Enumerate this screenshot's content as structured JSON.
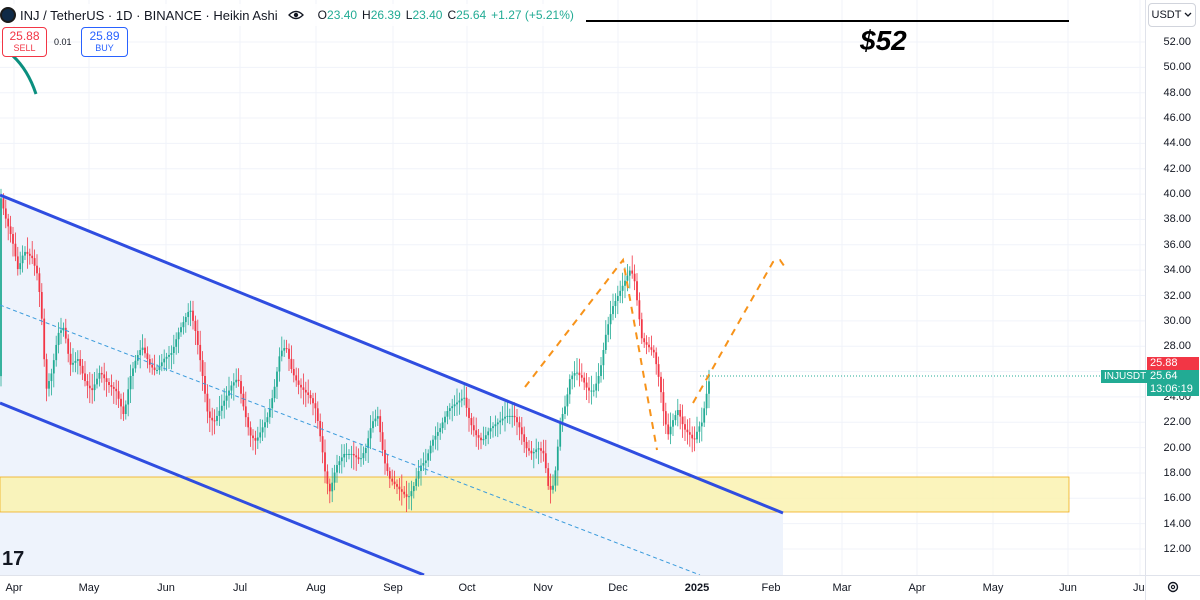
{
  "header": {
    "symbol_title": "INJ / TetherUS · 1D · BINANCE · Heikin Ashi",
    "ohlc": {
      "o_label": "O",
      "o_value": "23.40",
      "h_label": "H",
      "h_value": "26.39",
      "l_label": "L",
      "l_value": "23.40",
      "c_label": "C",
      "c_value": "25.64",
      "change": "+1.27 (+5.21%)"
    },
    "logo_icon": "inj-logo-icon",
    "eye_icon": "eye-icon"
  },
  "trade": {
    "sell_price": "25.88",
    "sell_label": "SELL",
    "spread": "0.01",
    "buy_price": "25.89",
    "buy_label": "BUY"
  },
  "currency_button": {
    "label": "USDT",
    "icon": "chevron-down-icon"
  },
  "annotation_target": "$52",
  "price_tags": {
    "symbol": "INJUSDT",
    "ask": "25.88",
    "last": "25.64",
    "countdown": "13:06:19"
  },
  "colors": {
    "up": "#22ab94",
    "down": "#f23645",
    "channel": "#2f4de0",
    "channel_fill": "#eef3fc",
    "zone_fill": "#fbf3b5",
    "zone_border": "#f0a500",
    "projection": "#f7931a",
    "midline": "#3a9bdc"
  },
  "tv_logo": "17",
  "settings_icon": "gear-icon",
  "chart_data": {
    "type": "candlestick",
    "chart_style": "Heikin Ashi",
    "y_ticks": [
      "52.00",
      "50.00",
      "48.00",
      "46.00",
      "44.00",
      "42.00",
      "40.00",
      "38.00",
      "36.00",
      "34.00",
      "32.00",
      "30.00",
      "28.00",
      "26.00",
      "24.00",
      "22.00",
      "20.00",
      "18.00",
      "16.00",
      "14.00",
      "12.00"
    ],
    "x_ticks": [
      "Apr",
      "May",
      "Jun",
      "Jul",
      "Aug",
      "Sep",
      "Oct",
      "Nov",
      "Dec",
      "2025",
      "Feb",
      "Mar",
      "Apr",
      "May",
      "Jun",
      "Jul"
    ],
    "ylim": [
      10.3,
      54.5
    ],
    "price_path": [
      [
        0,
        40.0
      ],
      [
        6,
        38.0
      ],
      [
        12,
        36.5
      ],
      [
        18,
        34.0
      ],
      [
        24,
        35.5
      ],
      [
        32,
        35.0
      ],
      [
        38,
        33.5
      ],
      [
        42,
        30.0
      ],
      [
        46,
        24.5
      ],
      [
        52,
        26.0
      ],
      [
        58,
        29.0
      ],
      [
        64,
        29.5
      ],
      [
        70,
        26.5
      ],
      [
        78,
        27.0
      ],
      [
        86,
        25.0
      ],
      [
        92,
        24.5
      ],
      [
        100,
        26.0
      ],
      [
        108,
        25.0
      ],
      [
        116,
        24.5
      ],
      [
        124,
        22.5
      ],
      [
        130,
        25.5
      ],
      [
        136,
        27.0
      ],
      [
        142,
        28.0
      ],
      [
        150,
        26.5
      ],
      [
        156,
        26.0
      ],
      [
        164,
        27.0
      ],
      [
        172,
        27.5
      ],
      [
        178,
        29.0
      ],
      [
        184,
        30.0
      ],
      [
        190,
        31.0
      ],
      [
        196,
        29.0
      ],
      [
        202,
        26.0
      ],
      [
        208,
        22.5
      ],
      [
        214,
        22.0
      ],
      [
        220,
        23.0
      ],
      [
        226,
        24.0
      ],
      [
        232,
        25.0
      ],
      [
        238,
        25.5
      ],
      [
        244,
        23.0
      ],
      [
        250,
        21.0
      ],
      [
        256,
        20.5
      ],
      [
        262,
        21.5
      ],
      [
        268,
        22.5
      ],
      [
        274,
        24.5
      ],
      [
        280,
        27.5
      ],
      [
        286,
        28.0
      ],
      [
        292,
        26.0
      ],
      [
        298,
        25.0
      ],
      [
        304,
        24.5
      ],
      [
        310,
        24.0
      ],
      [
        316,
        23.0
      ],
      [
        322,
        20.0
      ],
      [
        326,
        17.5
      ],
      [
        330,
        16.5
      ],
      [
        336,
        18.5
      ],
      [
        344,
        19.5
      ],
      [
        352,
        19.5
      ],
      [
        360,
        19.0
      ],
      [
        366,
        20.0
      ],
      [
        372,
        22.0
      ],
      [
        378,
        22.5
      ],
      [
        384,
        19.0
      ],
      [
        390,
        17.5
      ],
      [
        396,
        17.0
      ],
      [
        402,
        16.5
      ],
      [
        408,
        16.0
      ],
      [
        414,
        17.0
      ],
      [
        420,
        18.5
      ],
      [
        426,
        19.0
      ],
      [
        432,
        20.5
      ],
      [
        440,
        21.5
      ],
      [
        448,
        23.0
      ],
      [
        456,
        23.5
      ],
      [
        464,
        24.0
      ],
      [
        470,
        22.0
      ],
      [
        476,
        21.0
      ],
      [
        482,
        20.5
      ],
      [
        490,
        21.5
      ],
      [
        498,
        22.0
      ],
      [
        506,
        22.5
      ],
      [
        514,
        22.5
      ],
      [
        520,
        21.5
      ],
      [
        526,
        20.0
      ],
      [
        532,
        19.5
      ],
      [
        538,
        20.0
      ],
      [
        544,
        19.5
      ],
      [
        548,
        17.0
      ],
      [
        552,
        16.5
      ],
      [
        556,
        18.5
      ],
      [
        560,
        22.0
      ],
      [
        566,
        23.5
      ],
      [
        570,
        25.5
      ],
      [
        576,
        26.0
      ],
      [
        582,
        25.5
      ],
      [
        588,
        24.5
      ],
      [
        594,
        24.5
      ],
      [
        600,
        26.0
      ],
      [
        606,
        29.0
      ],
      [
        612,
        31.0
      ],
      [
        618,
        32.0
      ],
      [
        624,
        33.0
      ],
      [
        630,
        34.0
      ],
      [
        634,
        33.5
      ],
      [
        638,
        31.0
      ],
      [
        642,
        28.5
      ],
      [
        648,
        28.0
      ],
      [
        654,
        27.5
      ],
      [
        660,
        25.0
      ],
      [
        664,
        22.5
      ],
      [
        668,
        21.0
      ],
      [
        672,
        22.0
      ],
      [
        678,
        23.0
      ],
      [
        684,
        21.5
      ],
      [
        690,
        21.0
      ],
      [
        694,
        20.5
      ],
      [
        698,
        21.5
      ],
      [
        702,
        22.0
      ],
      [
        706,
        24.0
      ],
      [
        710,
        25.64
      ]
    ],
    "annotations": {
      "target_price": 52.0,
      "support_zone": [
        14.9,
        17.6
      ],
      "descending_channel": true,
      "projected_path": true
    }
  }
}
